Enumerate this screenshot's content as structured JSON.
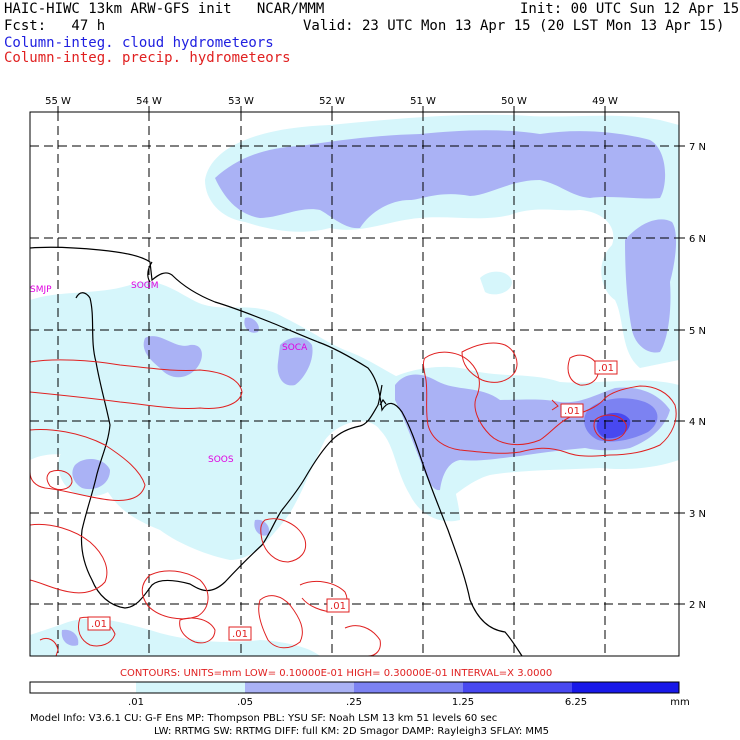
{
  "header": {
    "line1_left": "HAIC-HIWC 13km ARW-GFS init   NCAR/MMM",
    "line1_right": "Init: 00 UTC Sun 12 Apr 15",
    "line2_left": "Fcst:   47 h",
    "line2_right": "Valid: 23 UTC Mon 13 Apr 15 (20 LST Mon 13 Apr 15)",
    "line3": "Column-integ. cloud hydrometeors",
    "line4": "Column-integ. precip. hydrometeors"
  },
  "colors": {
    "cloud_title": "#2020e0",
    "precip_title": "#e02020",
    "contour": "#e02020",
    "station": "#e000e0",
    "shade_1": "#d6f6fb",
    "shade_2": "#aab2f5",
    "shade_3": "#7c82f2",
    "shade_4": "#4848f0",
    "shade_5": "#1818e8"
  },
  "axes": {
    "lon_labels": [
      "55 W",
      "54 W",
      "53 W",
      "52 W",
      "51 W",
      "50 W",
      "49 W"
    ],
    "lat_labels": [
      "7 N",
      "6 N",
      "5 N",
      "4 N",
      "3 N",
      "2 N"
    ]
  },
  "stations": [
    "SMJP",
    "SOGM",
    "SOCA",
    "SOOS"
  ],
  "contour_labels": [
    ".01",
    ".01",
    ".01",
    ".01",
    ".01"
  ],
  "contour_info": "CONTOURS:  UNITS=mm  LOW= 0.10000E-01  HIGH= 0.30000E-01  INTERVAL=X  3.0000",
  "colorbar": {
    "ticks": [
      ".01",
      ".05",
      ".25",
      "1.25",
      "6.25"
    ],
    "unit": "mm"
  },
  "model_info": {
    "line1": "Model Info: V3.6.1    CU: G-F Ens MP: Thompson    PBL: YSU     SF: Noah LSM    13 km   51 levels   60 sec",
    "line2": "LW: RRTMG   SW: RRTMG  DIFF: full   KM: 2D Smagor DAMP: Rayleigh3   SFLAY: MM5"
  }
}
